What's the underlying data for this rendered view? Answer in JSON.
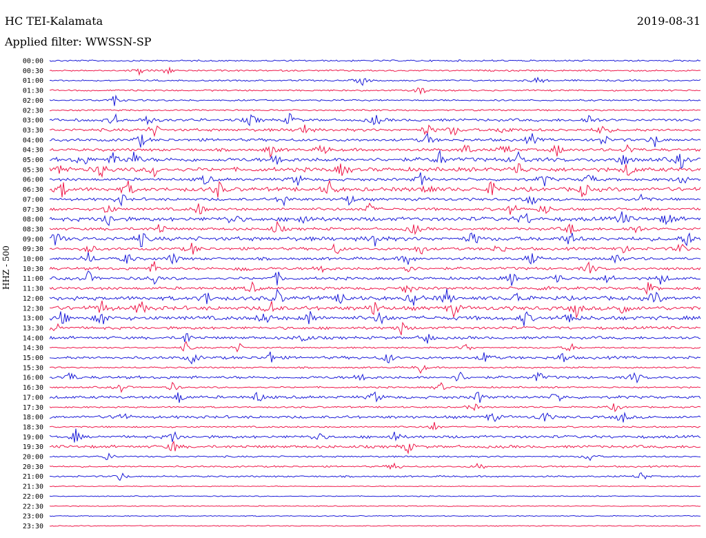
{
  "header": {
    "station": "HC TEI-Kalamata",
    "date": "2019-08-31",
    "filter": "Applied filter: WWSSN-SP",
    "channel": "HHZ - 500"
  },
  "colors": {
    "even": "#1a1ad8",
    "odd": "#ee1648"
  },
  "chart_data": {
    "type": "line",
    "title": "HC TEI-Kalamata",
    "date": "2019-08-31",
    "filter": "WWSSN-SP",
    "ylabel": "HHZ - 500",
    "traces": [
      {
        "label": "00:00",
        "color": "#1a1ad8",
        "amplitude": "low",
        "events": []
      },
      {
        "label": "00:30",
        "color": "#ee1648",
        "amplitude": "low",
        "events": [
          0.14,
          0.18
        ]
      },
      {
        "label": "01:00",
        "color": "#1a1ad8",
        "amplitude": "low",
        "events": [
          0.48,
          0.75
        ]
      },
      {
        "label": "01:30",
        "color": "#ee1648",
        "amplitude": "low",
        "events": [
          0.57
        ]
      },
      {
        "label": "02:00",
        "color": "#1a1ad8",
        "amplitude": "low",
        "events": [
          0.1
        ]
      },
      {
        "label": "02:30",
        "color": "#ee1648",
        "amplitude": "low",
        "events": []
      },
      {
        "label": "03:00",
        "color": "#1a1ad8",
        "amplitude": "medium",
        "events": [
          0.1,
          0.15,
          0.31,
          0.37,
          0.5,
          0.83
        ]
      },
      {
        "label": "03:30",
        "color": "#ee1648",
        "amplitude": "medium",
        "events": [
          0.16,
          0.39,
          0.58,
          0.62,
          0.7,
          0.85
        ]
      },
      {
        "label": "04:00",
        "color": "#1a1ad8",
        "amplitude": "medium",
        "events": [
          0.14,
          0.58,
          0.74,
          0.85,
          0.93
        ]
      },
      {
        "label": "04:30",
        "color": "#ee1648",
        "amplitude": "medium",
        "events": [
          0.34,
          0.42,
          0.64,
          0.7,
          0.78,
          0.89
        ]
      },
      {
        "label": "05:00",
        "color": "#1a1ad8",
        "amplitude": "high",
        "events": [
          0.05,
          0.1,
          0.13,
          0.35,
          0.6,
          0.72,
          0.88,
          0.97
        ]
      },
      {
        "label": "05:30",
        "color": "#ee1648",
        "amplitude": "high",
        "events": [
          0.02,
          0.08,
          0.16,
          0.45,
          0.72,
          0.89
        ]
      },
      {
        "label": "06:00",
        "color": "#1a1ad8",
        "amplitude": "medium",
        "events": [
          0.24,
          0.38,
          0.57,
          0.76,
          0.83,
          0.97
        ]
      },
      {
        "label": "06:30",
        "color": "#ee1648",
        "amplitude": "high",
        "events": [
          0.02,
          0.12,
          0.26,
          0.43,
          0.58,
          0.68,
          0.82
        ]
      },
      {
        "label": "07:00",
        "color": "#1a1ad8",
        "amplitude": "medium",
        "events": [
          0.11,
          0.36,
          0.46,
          0.74,
          0.91
        ]
      },
      {
        "label": "07:30",
        "color": "#ee1648",
        "amplitude": "medium",
        "events": [
          0.09,
          0.23,
          0.49,
          0.71,
          0.76
        ]
      },
      {
        "label": "08:00",
        "color": "#1a1ad8",
        "amplitude": "high",
        "events": [
          0.09,
          0.28,
          0.39,
          0.73,
          0.88,
          0.95
        ]
      },
      {
        "label": "08:30",
        "color": "#ee1648",
        "amplitude": "medium",
        "events": [
          0.17,
          0.35,
          0.56,
          0.8,
          0.9
        ]
      },
      {
        "label": "09:00",
        "color": "#1a1ad8",
        "amplitude": "high",
        "events": [
          0.01,
          0.14,
          0.5,
          0.65,
          0.8,
          0.98
        ]
      },
      {
        "label": "09:30",
        "color": "#ee1648",
        "amplitude": "medium",
        "events": [
          0.06,
          0.22,
          0.44,
          0.57,
          0.69,
          0.88,
          0.97
        ]
      },
      {
        "label": "10:00",
        "color": "#1a1ad8",
        "amplitude": "medium",
        "events": [
          0.06,
          0.12,
          0.19,
          0.55,
          0.74,
          0.87
        ]
      },
      {
        "label": "10:30",
        "color": "#ee1648",
        "amplitude": "medium",
        "events": [
          0.16,
          0.3,
          0.42,
          0.55,
          0.83
        ]
      },
      {
        "label": "11:00",
        "color": "#1a1ad8",
        "amplitude": "medium",
        "events": [
          0.06,
          0.16,
          0.35,
          0.71,
          0.78,
          0.86,
          0.94
        ]
      },
      {
        "label": "11:30",
        "color": "#ee1648",
        "amplitude": "medium",
        "events": [
          0.31,
          0.55,
          0.77,
          0.92
        ]
      },
      {
        "label": "12:00",
        "color": "#1a1ad8",
        "amplitude": "high",
        "events": [
          0.24,
          0.35,
          0.45,
          0.56,
          0.61,
          0.72,
          0.93
        ]
      },
      {
        "label": "12:30",
        "color": "#ee1648",
        "amplitude": "high",
        "events": [
          0.08,
          0.14,
          0.34,
          0.5,
          0.62,
          0.81,
          0.88
        ]
      },
      {
        "label": "13:00",
        "color": "#1a1ad8",
        "amplitude": "high",
        "events": [
          0.02,
          0.08,
          0.33,
          0.4,
          0.51,
          0.73,
          0.8
        ]
      },
      {
        "label": "13:30",
        "color": "#ee1648",
        "amplitude": "medium",
        "events": [
          0.01,
          0.54
        ]
      },
      {
        "label": "14:00",
        "color": "#1a1ad8",
        "amplitude": "medium",
        "events": [
          0.21,
          0.39,
          0.58
        ]
      },
      {
        "label": "14:30",
        "color": "#ee1648",
        "amplitude": "low",
        "events": [
          0.21,
          0.29,
          0.64,
          0.8
        ]
      },
      {
        "label": "15:00",
        "color": "#1a1ad8",
        "amplitude": "medium",
        "events": [
          0.22,
          0.34,
          0.52,
          0.67,
          0.79
        ]
      },
      {
        "label": "15:30",
        "color": "#ee1648",
        "amplitude": "low",
        "events": [
          0.57
        ]
      },
      {
        "label": "16:00",
        "color": "#1a1ad8",
        "amplitude": "medium",
        "events": [
          0.03,
          0.48,
          0.63,
          0.75,
          0.9
        ]
      },
      {
        "label": "16:30",
        "color": "#ee1648",
        "amplitude": "low",
        "events": [
          0.11,
          0.19,
          0.6
        ]
      },
      {
        "label": "17:00",
        "color": "#1a1ad8",
        "amplitude": "medium",
        "events": [
          0.2,
          0.32,
          0.5,
          0.66,
          0.78
        ]
      },
      {
        "label": "17:30",
        "color": "#ee1648",
        "amplitude": "low",
        "events": [
          0.65,
          0.87
        ]
      },
      {
        "label": "18:00",
        "color": "#1a1ad8",
        "amplitude": "medium",
        "events": [
          0.11,
          0.68,
          0.76,
          0.88
        ]
      },
      {
        "label": "18:30",
        "color": "#ee1648",
        "amplitude": "low",
        "events": [
          0.59
        ]
      },
      {
        "label": "19:00",
        "color": "#1a1ad8",
        "amplitude": "medium",
        "events": [
          0.04,
          0.19,
          0.41,
          0.53
        ]
      },
      {
        "label": "19:30",
        "color": "#ee1648",
        "amplitude": "medium",
        "events": [
          0.19,
          0.55
        ]
      },
      {
        "label": "20:00",
        "color": "#1a1ad8",
        "amplitude": "low",
        "events": [
          0.09,
          0.83
        ]
      },
      {
        "label": "20:30",
        "color": "#ee1648",
        "amplitude": "low",
        "events": [
          0.53,
          0.66
        ]
      },
      {
        "label": "21:00",
        "color": "#1a1ad8",
        "amplitude": "low",
        "events": [
          0.11,
          0.91
        ]
      },
      {
        "label": "21:30",
        "color": "#ee1648",
        "amplitude": "very-low",
        "events": []
      },
      {
        "label": "22:00",
        "color": "#1a1ad8",
        "amplitude": "very-low",
        "events": []
      },
      {
        "label": "22:30",
        "color": "#ee1648",
        "amplitude": "very-low",
        "events": []
      },
      {
        "label": "23:00",
        "color": "#1a1ad8",
        "amplitude": "very-low",
        "events": []
      },
      {
        "label": "23:30",
        "color": "#ee1648",
        "amplitude": "very-low",
        "events": []
      }
    ]
  }
}
